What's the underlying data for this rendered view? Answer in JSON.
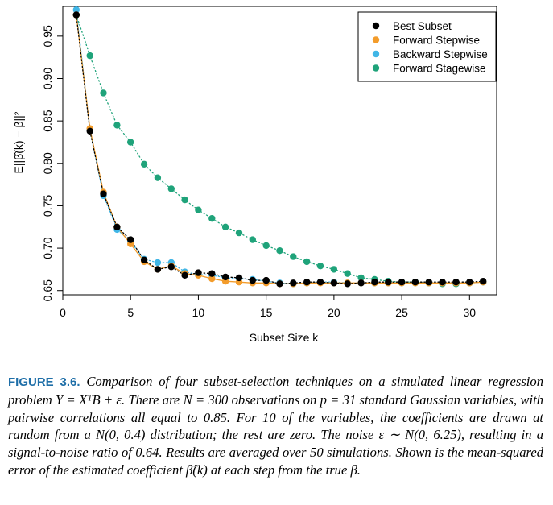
{
  "chart_data": {
    "type": "scatter",
    "xlabel": "Subset Size k",
    "ylabel": "E||β̂(k) − β||²",
    "xlim": [
      0,
      32
    ],
    "ylim": [
      0.645,
      0.985
    ],
    "xticks": [
      0,
      5,
      10,
      15,
      20,
      25,
      30
    ],
    "yticks": [
      0.65,
      0.7,
      0.75,
      0.8,
      0.85,
      0.9,
      0.95
    ],
    "ytick_labels": [
      "0.65",
      "0.70",
      "0.75",
      "0.80",
      "0.85",
      "0.90",
      "0.95"
    ],
    "legend_position": "top-right",
    "series": [
      {
        "name": "Forward Stagewise",
        "color": "#1fa37a",
        "line": "dotted",
        "x": [
          1,
          2,
          3,
          4,
          5,
          6,
          7,
          8,
          9,
          10,
          11,
          12,
          13,
          14,
          15,
          16,
          17,
          18,
          19,
          20,
          21,
          22,
          23,
          24,
          25,
          26,
          27,
          28,
          29,
          30,
          31
        ],
        "y": [
          0.975,
          0.927,
          0.883,
          0.845,
          0.825,
          0.799,
          0.783,
          0.77,
          0.757,
          0.745,
          0.735,
          0.725,
          0.718,
          0.71,
          0.703,
          0.697,
          0.69,
          0.684,
          0.679,
          0.675,
          0.67,
          0.665,
          0.663,
          0.661,
          0.66,
          0.66,
          0.659,
          0.658,
          0.658,
          0.659,
          0.66
        ]
      },
      {
        "name": "Backward Stepwise",
        "color": "#41b6e6",
        "line": "dotted",
        "x": [
          1,
          2,
          3,
          4,
          5,
          6,
          7,
          8,
          9,
          10,
          11,
          12,
          13,
          14,
          15,
          16,
          17,
          18,
          19,
          20,
          21,
          22,
          23,
          24,
          25,
          26,
          27,
          28,
          29,
          30,
          31
        ],
        "y": [
          0.981,
          0.84,
          0.762,
          0.722,
          0.708,
          0.687,
          0.683,
          0.683,
          0.672,
          0.669,
          0.668,
          0.665,
          0.664,
          0.663,
          0.661,
          0.659,
          0.658,
          0.659,
          0.66,
          0.66,
          0.659,
          0.659,
          0.659,
          0.659,
          0.659,
          0.659,
          0.659,
          0.659,
          0.659,
          0.659,
          0.66
        ]
      },
      {
        "name": "Forward Stepwise",
        "color": "#f39c2b",
        "line": "solid",
        "x": [
          1,
          2,
          3,
          4,
          5,
          6,
          7,
          8,
          9,
          10,
          11,
          12,
          13,
          14,
          15,
          16,
          17,
          18,
          19,
          20,
          21,
          22,
          23,
          24,
          25,
          26,
          27,
          28,
          29,
          30,
          31
        ],
        "y": [
          0.975,
          0.841,
          0.766,
          0.725,
          0.705,
          0.684,
          0.675,
          0.679,
          0.67,
          0.668,
          0.664,
          0.661,
          0.66,
          0.659,
          0.659,
          0.658,
          0.658,
          0.659,
          0.659,
          0.659,
          0.659,
          0.659,
          0.659,
          0.659,
          0.659,
          0.659,
          0.659,
          0.659,
          0.659,
          0.659,
          0.66
        ]
      },
      {
        "name": "Best Subset",
        "color": "#000000",
        "line": "dotted",
        "x": [
          1,
          2,
          3,
          4,
          5,
          6,
          7,
          8,
          9,
          10,
          11,
          12,
          13,
          14,
          15,
          16,
          17,
          18,
          19,
          20,
          21,
          22,
          23,
          24,
          25,
          26,
          27,
          28,
          29,
          30,
          31
        ],
        "y": [
          0.975,
          0.838,
          0.764,
          0.725,
          0.71,
          0.686,
          0.675,
          0.678,
          0.668,
          0.671,
          0.67,
          0.666,
          0.665,
          0.662,
          0.662,
          0.658,
          0.659,
          0.66,
          0.66,
          0.659,
          0.658,
          0.659,
          0.66,
          0.66,
          0.66,
          0.66,
          0.66,
          0.66,
          0.66,
          0.66,
          0.661
        ]
      }
    ],
    "legend": [
      "Best Subset",
      "Forward Stepwise",
      "Backward Stepwise",
      "Forward Stagewise"
    ]
  },
  "caption": {
    "label": "FIGURE 3.6.",
    "text": "Comparison of four subset-selection techniques on a simulated linear regression problem Y = XᵀB + ε. There are N = 300 observations on p = 31 standard Gaussian variables, with pairwise correlations all equal to 0.85. For 10 of the variables, the coefficients are drawn at random from a N(0, 0.4) distribution; the rest are zero. The noise ε ∼ N(0, 6.25), resulting in a signal-to-noise ratio of 0.64. Results are averaged over 50 simulations. Shown is the mean-squared error of the estimated coefficient β̂(k) at each step from the true β."
  }
}
